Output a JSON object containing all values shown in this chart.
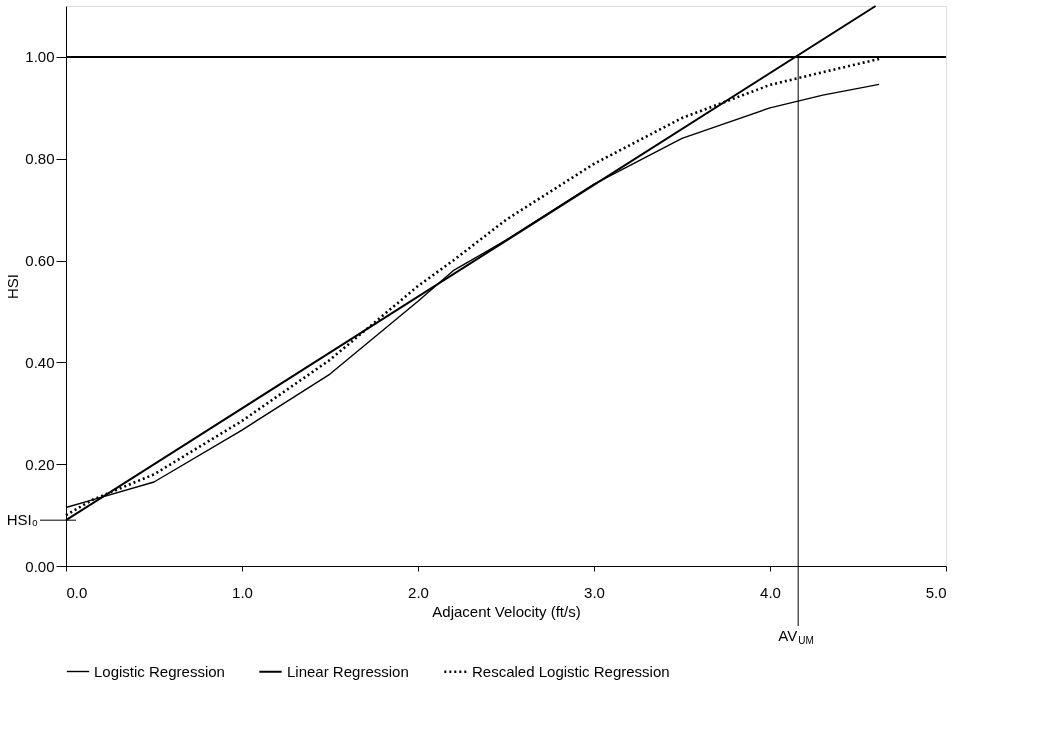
{
  "chart_data": {
    "type": "line",
    "xlabel": "Adjacent Velocity (ft/s)",
    "ylabel": "HSI",
    "xlim": [
      0,
      5
    ],
    "ylim": [
      0,
      1.1
    ],
    "xticks": [
      {
        "value": 0,
        "label": "0.0"
      },
      {
        "value": 1,
        "label": "1.0"
      },
      {
        "value": 2,
        "label": "2.0"
      },
      {
        "value": 3,
        "label": "3.0"
      },
      {
        "value": 4,
        "label": "4.0"
      },
      {
        "value": 5,
        "label": "5.0"
      }
    ],
    "yticks": [
      {
        "value": 0,
        "label": "0.00"
      },
      {
        "value": 0.2,
        "label": "0.20"
      },
      {
        "value": 0.4,
        "label": "0.40"
      },
      {
        "value": 0.6,
        "label": "0.60"
      },
      {
        "value": 0.8,
        "label": "0.80"
      },
      {
        "value": 1,
        "label": "1.00"
      }
    ],
    "series": [
      {
        "name": "Logistic Regression",
        "color": "#000000",
        "line_style": "solid",
        "x": [
          0,
          0.15,
          0.5,
          1.0,
          1.5,
          2.0,
          2.2,
          2.5,
          3.0,
          3.5,
          4.0,
          4.3,
          4.62
        ],
        "values": [
          0.115,
          0.13,
          0.165,
          0.267,
          0.377,
          0.52,
          0.58,
          0.64,
          0.75,
          0.84,
          0.9,
          0.925,
          0.946
        ]
      },
      {
        "name": "Linear Regression",
        "color": "#000000",
        "line_style": "solid",
        "x": [
          0,
          4.6
        ],
        "values": [
          0.09,
          1.1
        ]
      },
      {
        "name": "Rescaled Logistic Regression",
        "color": "#000000",
        "line_style": "dotted",
        "x": [
          0,
          0.15,
          0.5,
          1.0,
          1.5,
          2.0,
          2.2,
          2.5,
          3.0,
          3.5,
          4.0,
          4.3,
          4.62
        ],
        "values": [
          0.1,
          0.13,
          0.18,
          0.285,
          0.405,
          0.55,
          0.6,
          0.68,
          0.79,
          0.88,
          0.945,
          0.97,
          0.996
        ]
      }
    ],
    "ref_lines": [
      {
        "axis": "y",
        "value": 1.0,
        "label": null
      },
      {
        "axis": "y",
        "value": 0.09,
        "label": "HSI₀"
      },
      {
        "axis": "x",
        "value": 4.16,
        "label": "AV$_{UM}$"
      }
    ],
    "grid": false,
    "legend": "bottom"
  }
}
